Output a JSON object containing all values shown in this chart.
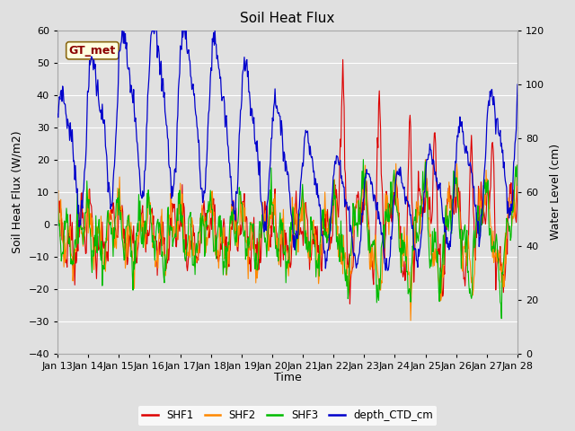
{
  "title": "Soil Heat Flux",
  "ylabel_left": "Soil Heat Flux (W/m2)",
  "ylabel_right": "Water Level (cm)",
  "xlabel": "Time",
  "annotation_text": "GT_met",
  "ylim_left": [
    -40,
    60
  ],
  "ylim_right": [
    0,
    120
  ],
  "yticks_left": [
    -40,
    -30,
    -20,
    -10,
    0,
    10,
    20,
    30,
    40,
    50,
    60
  ],
  "yticks_right": [
    0,
    20,
    40,
    60,
    80,
    100,
    120
  ],
  "colors": {
    "SHF1": "#dd0000",
    "SHF2": "#ff8800",
    "SHF3": "#00bb00",
    "depth_CTD_cm": "#0000cc"
  },
  "background_color": "#e0e0e0",
  "grid_color": "#ffffff"
}
